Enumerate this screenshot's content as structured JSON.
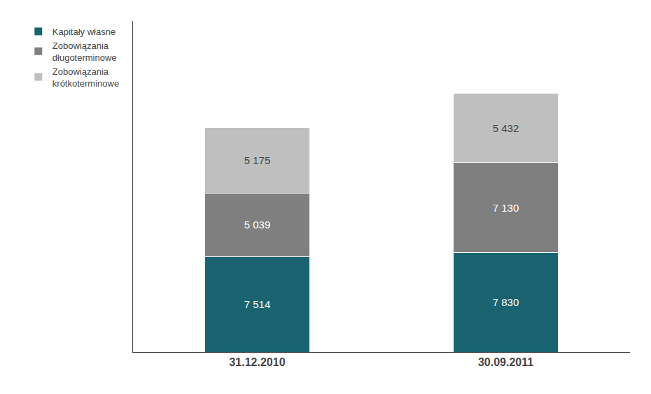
{
  "chart_data": {
    "type": "bar",
    "stacked": true,
    "categories": [
      "31.12.2010",
      "30.09.2011"
    ],
    "series": [
      {
        "name": "Kapitały własne",
        "color": "#1a6472",
        "values": [
          7514,
          7830
        ],
        "value_labels": [
          "7 514",
          "7 830"
        ]
      },
      {
        "name": "Zobowiązania\ndługoterminowe",
        "color": "#7f7f7f",
        "values": [
          5039,
          7130
        ],
        "value_labels": [
          "5 039",
          "7 130"
        ]
      },
      {
        "name": "Zobowiązania\nkrótkoterminowe",
        "color": "#bfbfbf",
        "values": [
          5175,
          5432
        ],
        "value_labels": [
          "5 175",
          "5 432"
        ]
      }
    ],
    "ylim": [
      0,
      26101.76
    ],
    "yticks": [],
    "data_labels": true,
    "tick_labels": "x",
    "grid": false,
    "legend": "upper left"
  }
}
